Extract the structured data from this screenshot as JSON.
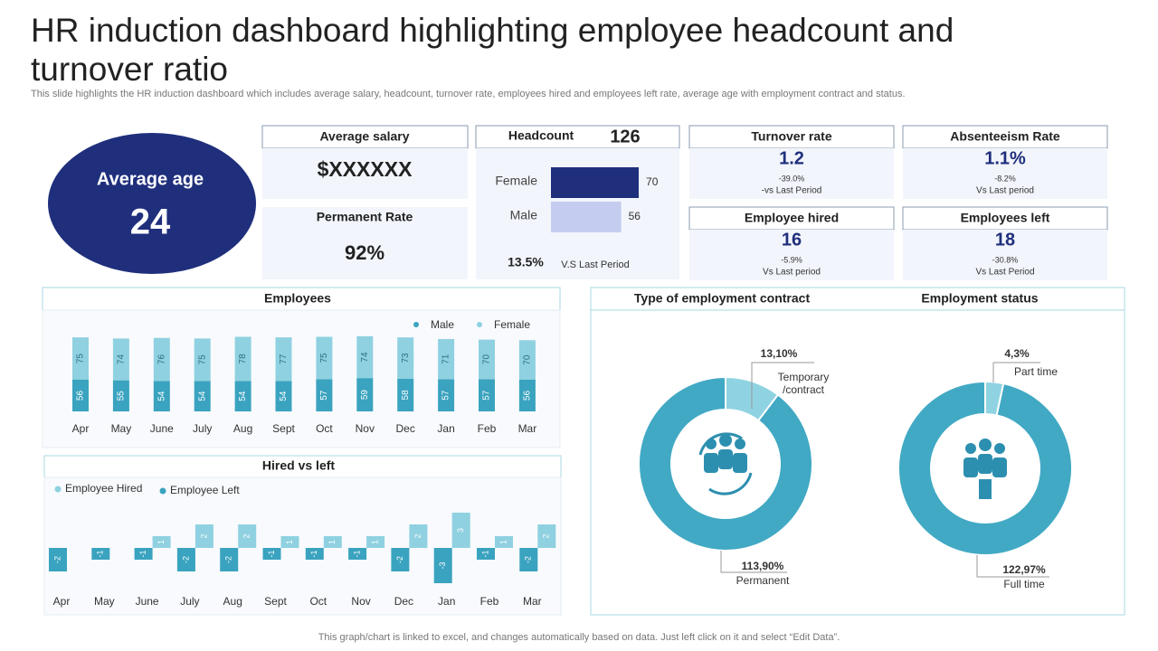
{
  "header": {
    "title": "HR induction dashboard highlighting employee headcount and turnover ratio",
    "subtitle": "This slide highlights the HR induction dashboard which includes average salary, headcount, turnover rate, employees hired and employees left rate, average age with employment contract and status."
  },
  "average_age": {
    "label": "Average age",
    "value": 24
  },
  "cards": [
    {
      "label": "Average salary",
      "value": "$XXXXXX"
    },
    {
      "label": "Permanent Rate",
      "value": "92%"
    }
  ],
  "headcount": {
    "label": "Headcount",
    "total": 126,
    "change": "13.5%",
    "note": "V.S Last Period"
  },
  "kpis": [
    {
      "label": "Turnover rate",
      "value": 1.2,
      "change": "-39.0%",
      "note": "-vs Last Period"
    },
    {
      "label": "Absenteeism Rate",
      "value": "1.1%",
      "change": "-8.2%",
      "note": "Vs Last period"
    },
    {
      "label": "Employee hired",
      "value": 16,
      "change": "-5.9%",
      "note": "Vs Last period"
    },
    {
      "label": "Employees left",
      "value": 18,
      "change": "-30.8%",
      "note": "Vs Last Period"
    }
  ],
  "chart_data": [
    {
      "type": "hbar",
      "categories": [
        "Female",
        "Male"
      ],
      "values": [
        70,
        56
      ],
      "colors": [
        "#1f2f7c",
        "#c4cdf0"
      ]
    },
    {
      "type": "stacked_bar",
      "title": "Employees",
      "categories": [
        "Apr",
        "May",
        "June",
        "July",
        "Aug",
        "Sept",
        "Oct",
        "Nov",
        "Dec",
        "Jan",
        "Feb",
        "Mar"
      ],
      "series": [
        {
          "name": "Male",
          "color": "#3aa3bf",
          "values": [
            56,
            55,
            54,
            54,
            54,
            54,
            57,
            59,
            58,
            57,
            57,
            56
          ]
        },
        {
          "name": "Female",
          "color": "#8fd1e0",
          "values": [
            75,
            74,
            76,
            75,
            78,
            77,
            75,
            74,
            73,
            71,
            70,
            70
          ]
        }
      ]
    },
    {
      "type": "bar",
      "title": "Hired vs left",
      "categories": [
        "Apr",
        "May",
        "June",
        "July",
        "Aug",
        "Sept",
        "Oct",
        "Nov",
        "Dec",
        "Jan",
        "Feb",
        "Mar"
      ],
      "series": [
        {
          "name": "Employee Hired",
          "color": "#8fd1e0",
          "values": [
            null,
            null,
            1,
            2,
            2,
            1,
            1,
            1,
            2,
            3,
            1,
            2
          ]
        },
        {
          "name": "Employee Left",
          "color": "#3aa3bf",
          "values": [
            -2,
            -1,
            -1,
            -2,
            -2,
            -1,
            -1,
            -1,
            -2,
            -3,
            -1,
            -2
          ]
        }
      ]
    },
    {
      "type": "donut",
      "title": "Type of employment contract",
      "categories": [
        "Temporary /contract",
        "Permanent"
      ],
      "values": [
        13.1,
        113.9
      ],
      "value_labels": [
        "13,10%",
        "113,90%"
      ],
      "colors": [
        "#8fd3e2",
        "#41a9c4"
      ]
    },
    {
      "type": "donut",
      "title": "Employment status",
      "categories": [
        "Part time",
        "Full time"
      ],
      "values": [
        4.3,
        122.97
      ],
      "value_labels": [
        "4,3%",
        "122,97%"
      ],
      "colors": [
        "#8fd3e2",
        "#41a9c4"
      ]
    }
  ],
  "footer": "This graph/chart is linked to excel, and changes automatically based on data. Just left click on it and select “Edit Data”."
}
